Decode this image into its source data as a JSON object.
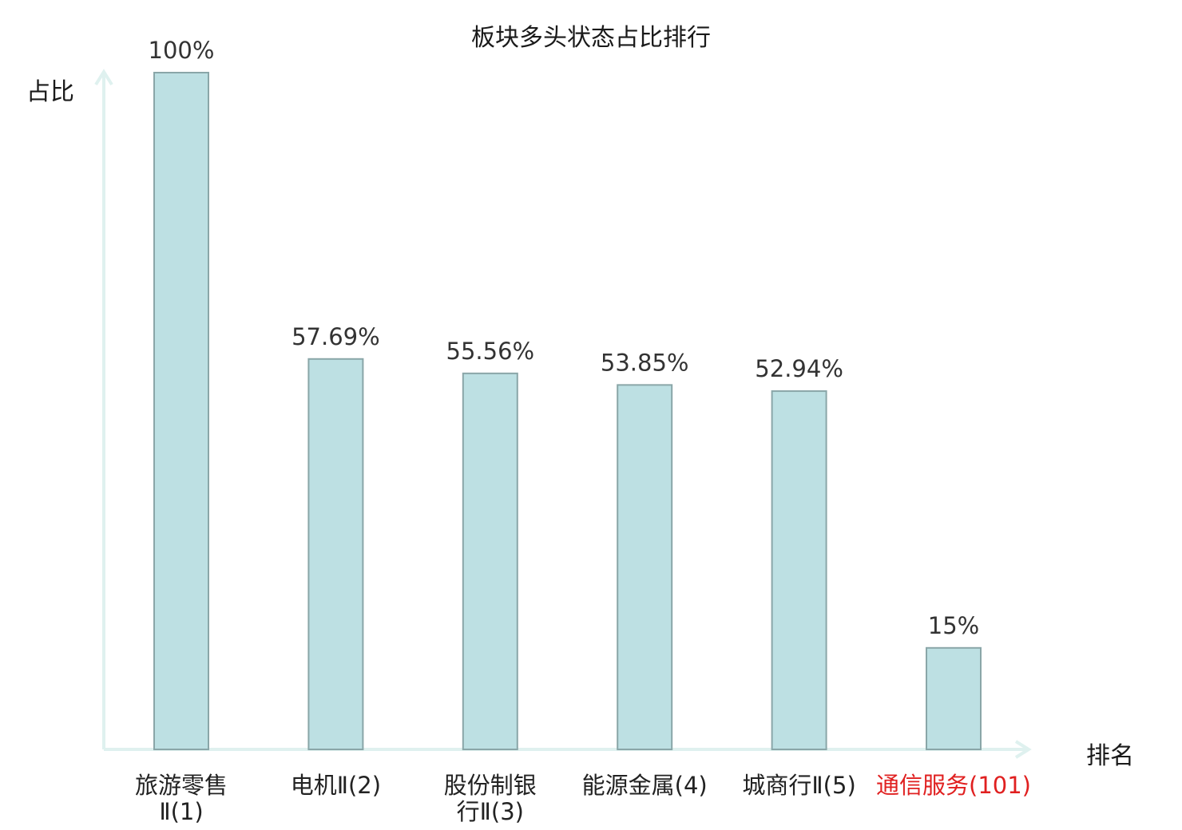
{
  "chart_data": {
    "type": "bar",
    "title": "板块多头状态占比排行",
    "xlabel": "排名",
    "ylabel": "占比",
    "ylim": [
      0,
      100
    ],
    "grid": false,
    "categories": [
      [
        "旅游零售",
        "Ⅱ(1)"
      ],
      [
        "电机Ⅱ(2)"
      ],
      [
        "股份制银",
        "行Ⅱ(3)"
      ],
      [
        "能源金属(4)"
      ],
      [
        "城商行Ⅱ(5)"
      ],
      [
        "通信服务(101)"
      ]
    ],
    "values": [
      100,
      57.69,
      55.56,
      53.85,
      52.94,
      15
    ],
    "value_labels": [
      "100%",
      "57.69%",
      "55.56%",
      "53.85%",
      "52.94%",
      "15%"
    ],
    "highlight_index": 5,
    "colors": {
      "bar_fill": "#bde0e3",
      "bar_stroke": "#8aa6a8",
      "axis": "#dff1ef",
      "highlight_text": "#e02020",
      "text": "#222222"
    }
  }
}
